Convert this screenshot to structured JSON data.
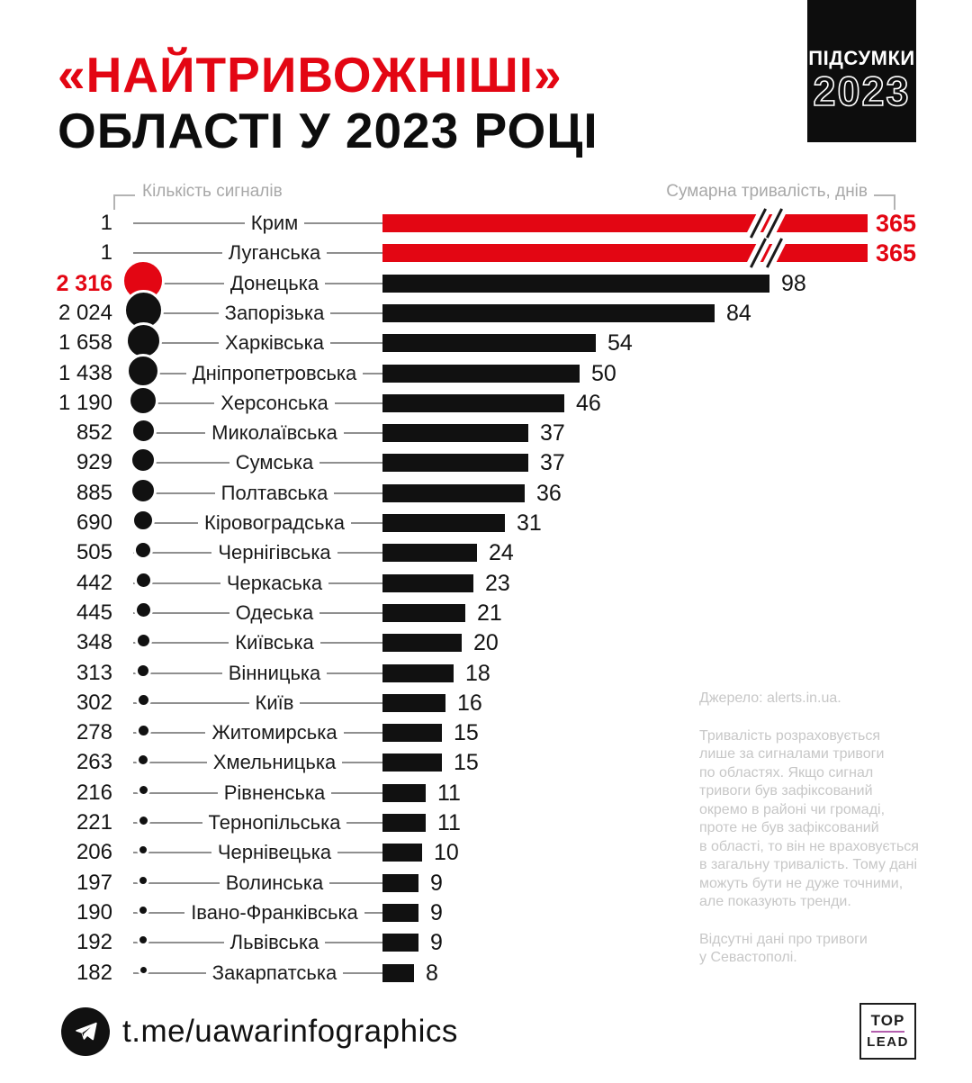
{
  "header": {
    "title_line1": "«НАЙТРИВОЖНІШІ»",
    "title_line2": "ОБЛАСТІ У 2023 РОЦІ",
    "badge": {
      "line1": "ПІДСУМКИ",
      "line2": "2023"
    }
  },
  "chart_data": {
    "type": "bar",
    "orientation": "horizontal",
    "left_axis_label": "Кількість сигналів",
    "right_axis_label": "Сумарна тривалість, днів",
    "bar_unit": "днів",
    "circle_unit": "сигналів",
    "accent_color": "#e30613",
    "bar_color": "#111111",
    "note": "Bars for 365 days are truncated with axis-break slashes",
    "rows": [
      {
        "region": "Крим",
        "signals": "1",
        "signals_value": 1,
        "days": 365,
        "accent": "bar",
        "broken_bar": true
      },
      {
        "region": "Луганська",
        "signals": "1",
        "signals_value": 1,
        "days": 365,
        "accent": "bar",
        "broken_bar": true
      },
      {
        "region": "Донецька",
        "signals": "2 316",
        "signals_value": 2316,
        "days": 98,
        "accent": "circle",
        "broken_bar": false
      },
      {
        "region": "Запорізька",
        "signals": "2 024",
        "signals_value": 2024,
        "days": 84,
        "accent": null,
        "broken_bar": false
      },
      {
        "region": "Харківська",
        "signals": "1 658",
        "signals_value": 1658,
        "days": 54,
        "accent": null,
        "broken_bar": false
      },
      {
        "region": "Дніпропетровська",
        "signals": "1 438",
        "signals_value": 1438,
        "days": 50,
        "accent": null,
        "broken_bar": false
      },
      {
        "region": "Херсонська",
        "signals": "1 190",
        "signals_value": 1190,
        "days": 46,
        "accent": null,
        "broken_bar": false
      },
      {
        "region": "Миколаївська",
        "signals": "852",
        "signals_value": 852,
        "days": 37,
        "accent": null,
        "broken_bar": false
      },
      {
        "region": "Сумська",
        "signals": "929",
        "signals_value": 929,
        "days": 37,
        "accent": null,
        "broken_bar": false
      },
      {
        "region": "Полтавська",
        "signals": "885",
        "signals_value": 885,
        "days": 36,
        "accent": null,
        "broken_bar": false
      },
      {
        "region": "Кіровоградська",
        "signals": "690",
        "signals_value": 690,
        "days": 31,
        "accent": null,
        "broken_bar": false
      },
      {
        "region": "Чернігівська",
        "signals": "505",
        "signals_value": 505,
        "days": 24,
        "accent": null,
        "broken_bar": false
      },
      {
        "region": "Черкаська",
        "signals": "442",
        "signals_value": 442,
        "days": 23,
        "accent": null,
        "broken_bar": false
      },
      {
        "region": "Одеська",
        "signals": "445",
        "signals_value": 445,
        "days": 21,
        "accent": null,
        "broken_bar": false
      },
      {
        "region": "Київська",
        "signals": "348",
        "signals_value": 348,
        "days": 20,
        "accent": null,
        "broken_bar": false
      },
      {
        "region": "Вінницька",
        "signals": "313",
        "signals_value": 313,
        "days": 18,
        "accent": null,
        "broken_bar": false
      },
      {
        "region": "Київ",
        "signals": "302",
        "signals_value": 302,
        "days": 16,
        "accent": null,
        "broken_bar": false
      },
      {
        "region": "Житомирська",
        "signals": "278",
        "signals_value": 278,
        "days": 15,
        "accent": null,
        "broken_bar": false
      },
      {
        "region": "Хмельницька",
        "signals": "263",
        "signals_value": 263,
        "days": 15,
        "accent": null,
        "broken_bar": false
      },
      {
        "region": "Рівненська",
        "signals": "216",
        "signals_value": 216,
        "days": 11,
        "accent": null,
        "broken_bar": false
      },
      {
        "region": "Тернопільська",
        "signals": "221",
        "signals_value": 221,
        "days": 11,
        "accent": null,
        "broken_bar": false
      },
      {
        "region": "Чернівецька",
        "signals": "206",
        "signals_value": 206,
        "days": 10,
        "accent": null,
        "broken_bar": false
      },
      {
        "region": "Волинська",
        "signals": "197",
        "signals_value": 197,
        "days": 9,
        "accent": null,
        "broken_bar": false
      },
      {
        "region": "Івано-Франківська",
        "signals": "190",
        "signals_value": 190,
        "days": 9,
        "accent": null,
        "broken_bar": false
      },
      {
        "region": "Львівська",
        "signals": "192",
        "signals_value": 192,
        "days": 9,
        "accent": null,
        "broken_bar": false
      },
      {
        "region": "Закарпатська",
        "signals": "182",
        "signals_value": 182,
        "days": 8,
        "accent": null,
        "broken_bar": false
      }
    ]
  },
  "notes": {
    "source": "Джерело: alerts.in.ua.",
    "methodology": "Тривалість розраховується\nлише за сигналами тривоги\nпо областях. Якщо сигнал\nтривоги був зафіксований\nокремо в районі чи громаді,\nпроте не був зафіксований\nв області, то він не враховується\nв загальну тривалість. Тому дані\nможуть бути не дуже точними,\nале показують тренди.",
    "missing": "Відсутні дані про тривоги\nу Севастополі."
  },
  "footer": {
    "telegram": "t.me/uawarinfographics",
    "logo_top": "TOP",
    "logo_bottom": "LEAD",
    "logo_accent_color": "#b45fae"
  }
}
